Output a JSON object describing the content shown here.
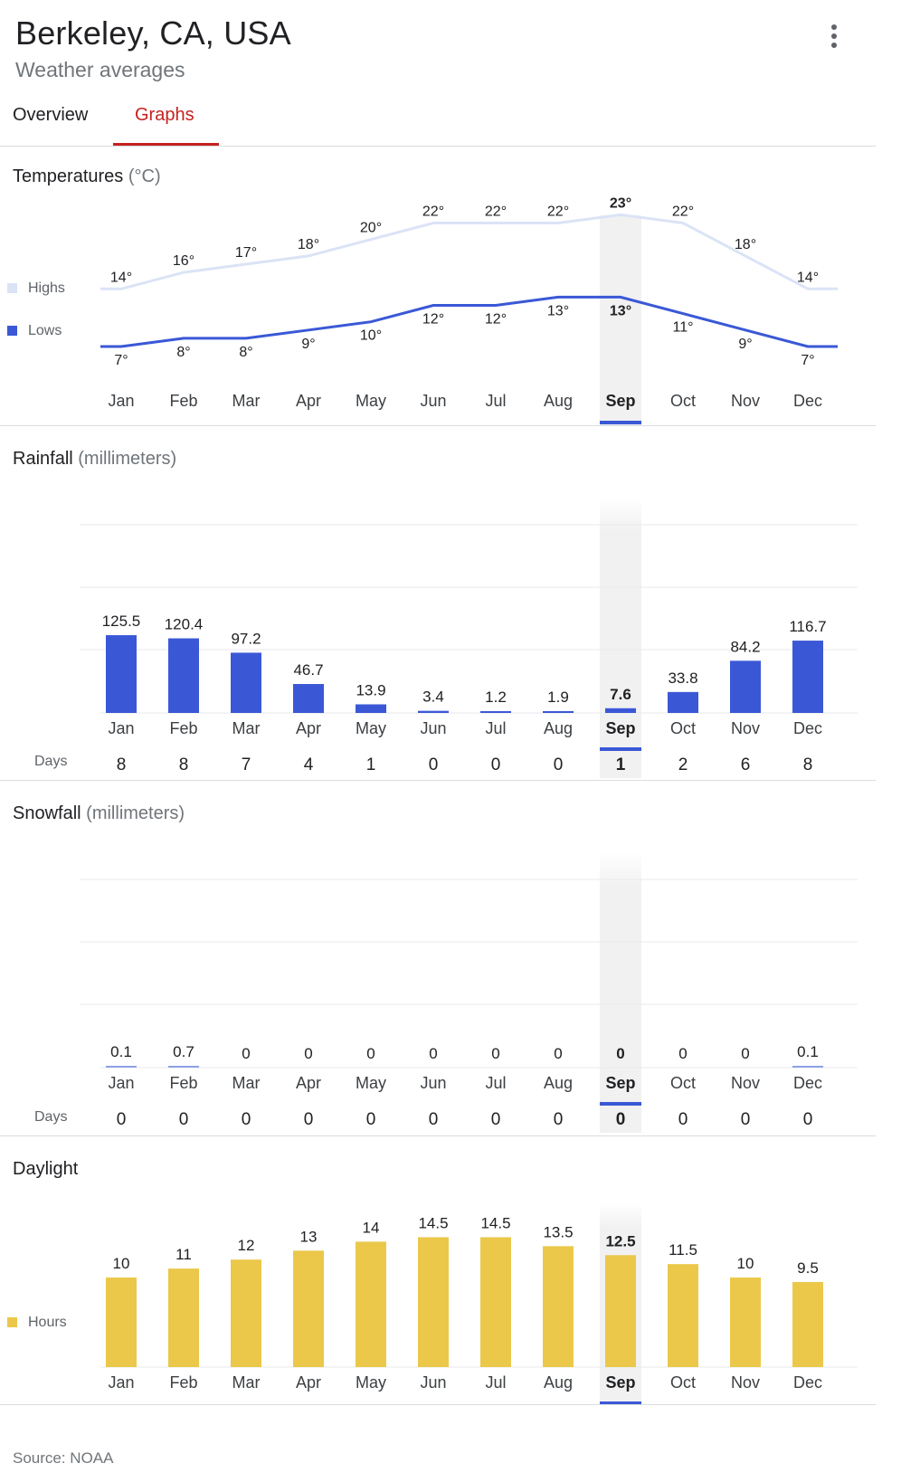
{
  "header": {
    "title": "Berkeley, CA, USA",
    "subtitle": "Weather averages"
  },
  "tabs": {
    "overview": "Overview",
    "graphs": "Graphs"
  },
  "colors": {
    "highs": "#dbe3f6",
    "lows": "#3a58d6",
    "rain": "#3a58d6",
    "daylight": "#ebc84a",
    "accent": "#c5221f",
    "selected_bg": "#f1f1f1"
  },
  "months": [
    "Jan",
    "Feb",
    "Mar",
    "Apr",
    "May",
    "Jun",
    "Jul",
    "Aug",
    "Sep",
    "Oct",
    "Nov",
    "Dec"
  ],
  "selected_month": "Sep",
  "temperature": {
    "title": "Temperatures",
    "unit": "(°C)",
    "legend": {
      "highs": "Highs",
      "lows": "Lows"
    },
    "chart_data": {
      "type": "line",
      "categories": [
        "Jan",
        "Feb",
        "Mar",
        "Apr",
        "May",
        "Jun",
        "Jul",
        "Aug",
        "Sep",
        "Oct",
        "Nov",
        "Dec"
      ],
      "series": [
        {
          "name": "Highs",
          "values": [
            14,
            16,
            17,
            18,
            20,
            22,
            22,
            22,
            23,
            22,
            18,
            14
          ]
        },
        {
          "name": "Lows",
          "values": [
            7,
            8,
            8,
            9,
            10,
            12,
            12,
            13,
            13,
            11,
            9,
            7
          ]
        }
      ],
      "value_suffix": "°"
    }
  },
  "rainfall": {
    "title": "Rainfall",
    "unit": "(millimeters)",
    "days_label": "Days",
    "chart_data": {
      "type": "bar",
      "categories": [
        "Jan",
        "Feb",
        "Mar",
        "Apr",
        "May",
        "Jun",
        "Jul",
        "Aug",
        "Sep",
        "Oct",
        "Nov",
        "Dec"
      ],
      "values": [
        125.5,
        120.4,
        97.2,
        46.7,
        13.9,
        3.4,
        1.2,
        1.9,
        7.6,
        33.8,
        84.2,
        116.7
      ],
      "days": [
        8,
        8,
        7,
        4,
        1,
        0,
        0,
        0,
        1,
        2,
        6,
        8
      ]
    }
  },
  "snowfall": {
    "title": "Snowfall",
    "unit": "(millimeters)",
    "days_label": "Days",
    "chart_data": {
      "type": "bar",
      "categories": [
        "Jan",
        "Feb",
        "Mar",
        "Apr",
        "May",
        "Jun",
        "Jul",
        "Aug",
        "Sep",
        "Oct",
        "Nov",
        "Dec"
      ],
      "values": [
        0.1,
        0.7,
        0,
        0,
        0,
        0,
        0,
        0,
        0,
        0,
        0,
        0.1
      ],
      "days": [
        0,
        0,
        0,
        0,
        0,
        0,
        0,
        0,
        0,
        0,
        0,
        0
      ]
    }
  },
  "daylight": {
    "title": "Daylight",
    "legend": {
      "hours": "Hours"
    },
    "chart_data": {
      "type": "bar",
      "categories": [
        "Jan",
        "Feb",
        "Mar",
        "Apr",
        "May",
        "Jun",
        "Jul",
        "Aug",
        "Sep",
        "Oct",
        "Nov",
        "Dec"
      ],
      "values": [
        10,
        11,
        12,
        13,
        14,
        14.5,
        14.5,
        13.5,
        12.5,
        11.5,
        10,
        9.5
      ]
    }
  },
  "footer": {
    "source": "Source: NOAA"
  }
}
